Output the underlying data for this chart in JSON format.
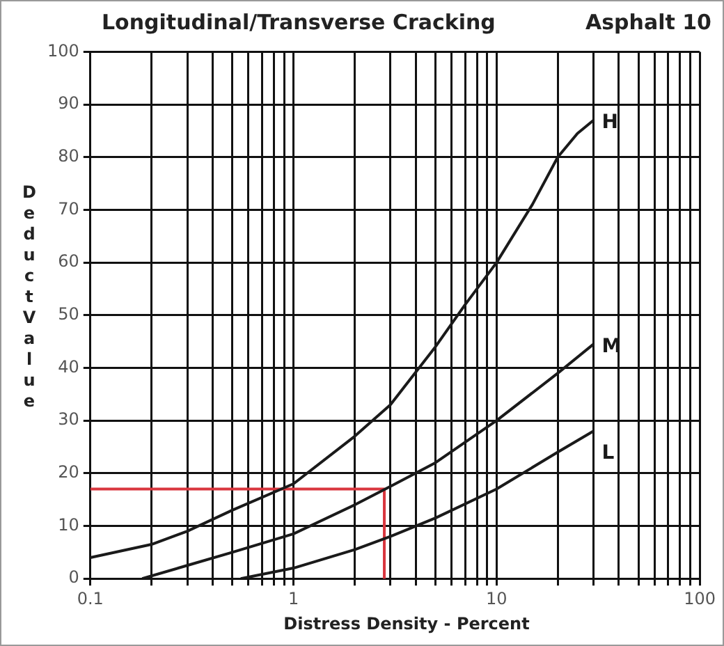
{
  "chart_data": {
    "type": "line",
    "title": "Longitudinal/Transverse Cracking",
    "subtitle": "Asphalt 10",
    "xlabel": "Distress Density - Percent",
    "ylabel": "Deduct Value",
    "log": "x",
    "xlim": [
      0.1,
      100
    ],
    "ylim": [
      0,
      100
    ],
    "xticks": [
      0.1,
      {
        "value": 0.2,
        "label": null
      },
      {
        "value": 0.3,
        "label": null
      },
      {
        "value": 0.4,
        "label": null
      },
      {
        "value": 0.5,
        "label": null
      },
      {
        "value": 0.6,
        "label": null
      },
      {
        "value": 0.7,
        "label": null
      },
      {
        "value": 0.8,
        "label": null
      },
      {
        "value": 0.9,
        "label": null
      },
      1,
      {
        "value": 2,
        "label": null
      },
      {
        "value": 3,
        "label": null
      },
      {
        "value": 4,
        "label": null
      },
      {
        "value": 5,
        "label": null
      },
      {
        "value": 6,
        "label": null
      },
      {
        "value": 7,
        "label": null
      },
      {
        "value": 8,
        "label": null
      },
      {
        "value": 9,
        "label": null
      },
      10,
      {
        "value": 20,
        "label": null
      },
      {
        "value": 30,
        "label": null
      },
      {
        "value": 40,
        "label": null
      },
      {
        "value": 50,
        "label": null
      },
      {
        "value": 60,
        "label": null
      },
      {
        "value": 70,
        "label": null
      },
      {
        "value": 80,
        "label": null
      },
      {
        "value": 90,
        "label": null
      },
      100
    ],
    "yticks": [
      0,
      10,
      20,
      30,
      40,
      50,
      60,
      70,
      80,
      90,
      100
    ],
    "grid": true,
    "legend": false,
    "marker": "none",
    "line_style": "solid",
    "series": [
      {
        "name": "H",
        "color": "#1a1a1a",
        "x": [
          0.1,
          0.2,
          0.3,
          0.5,
          1,
          2,
          3,
          5,
          7,
          10,
          15,
          20,
          25,
          30
        ],
        "values": [
          4,
          6.5,
          9,
          13,
          18,
          27,
          33,
          44,
          52,
          60,
          71,
          80,
          84.5,
          87
        ]
      },
      {
        "name": "M",
        "color": "#1a1a1a",
        "x": [
          0.18,
          0.3,
          0.5,
          1,
          2,
          3,
          5,
          10,
          20,
          30
        ],
        "values": [
          0,
          2.5,
          5,
          8.5,
          14,
          17.5,
          22,
          30,
          39,
          44.5
        ]
      },
      {
        "name": "L",
        "color": "#1a1a1a",
        "x": [
          0.55,
          1,
          2,
          3,
          5,
          10,
          20,
          30
        ],
        "values": [
          0,
          2,
          5.5,
          8,
          11.5,
          17,
          24,
          28
        ]
      },
      {
        "color": "#d9363e",
        "x": [
          0.1,
          2.8,
          2.8
        ],
        "values": [
          17,
          17,
          0
        ]
      }
    ]
  }
}
